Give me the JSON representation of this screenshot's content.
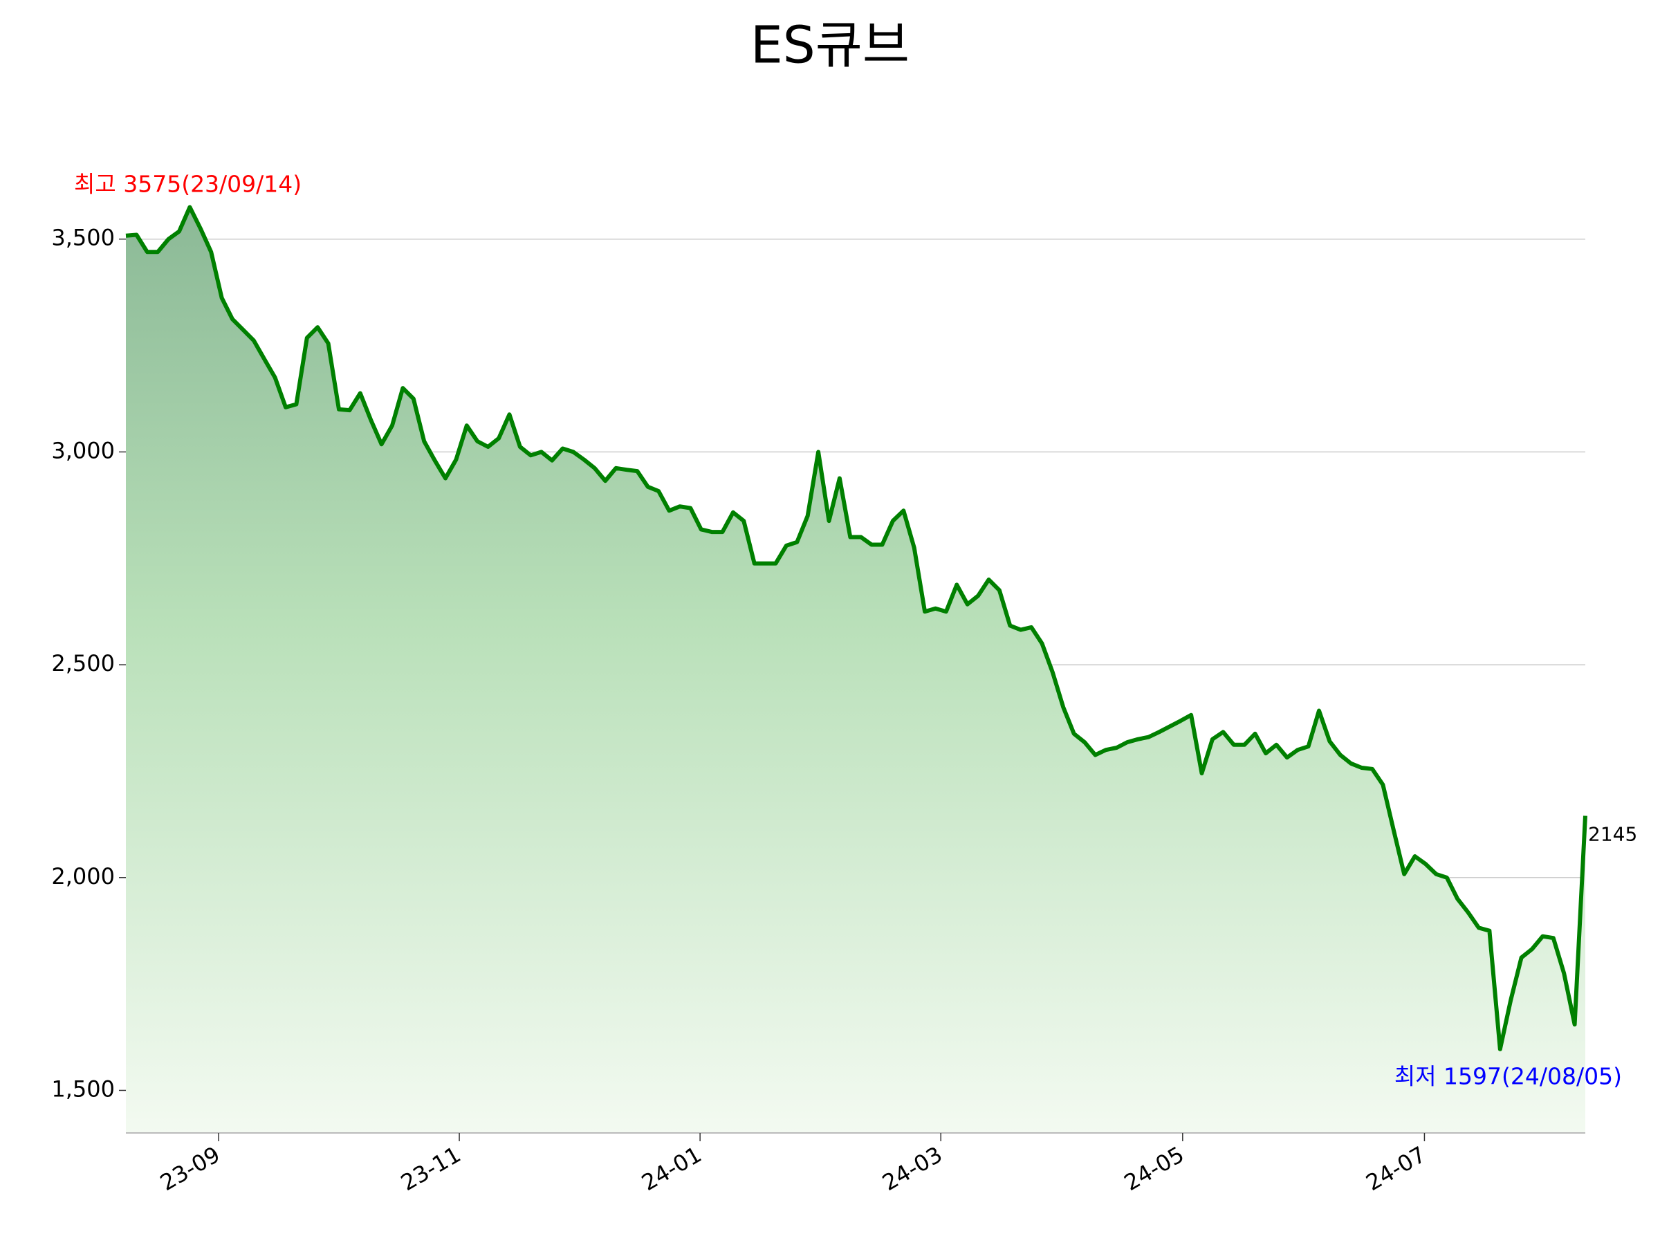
{
  "chart_data": {
    "type": "line",
    "title": "ES큐브",
    "color": "#008000",
    "grid": true,
    "categories": [
      null,
      null,
      null,
      null,
      null,
      null,
      null,
      null,
      null,
      null,
      null,
      null,
      null,
      null,
      null,
      null,
      null,
      null,
      null,
      null,
      null,
      null,
      null,
      null,
      null,
      null,
      null,
      null,
      null,
      null,
      null,
      null,
      null,
      null,
      null,
      null,
      null,
      null,
      null,
      null,
      null,
      null,
      null,
      null,
      null,
      null,
      null,
      null,
      null,
      null,
      null,
      null,
      null,
      null,
      null,
      null,
      null,
      null,
      null,
      null,
      null,
      null,
      null,
      null,
      null,
      null,
      null,
      null,
      null,
      null,
      null,
      null,
      null,
      null,
      null,
      null,
      null,
      null,
      null,
      null,
      null,
      null,
      null,
      null,
      null,
      null,
      null,
      null,
      null,
      null,
      null,
      null,
      null,
      null,
      null,
      null,
      null,
      null,
      null,
      null,
      null,
      null,
      null,
      null,
      null,
      null,
      null,
      null,
      null,
      null,
      null,
      null,
      null,
      null,
      null,
      null,
      null,
      null,
      null,
      null,
      null,
      null,
      null,
      null,
      null,
      null,
      null,
      null,
      null,
      null,
      null,
      null,
      null,
      null,
      null,
      null,
      null,
      null
    ],
    "values": [
      3508,
      3510,
      3470,
      3470,
      3500,
      3518,
      3575,
      3525,
      3470,
      3362,
      3312,
      3287,
      3262,
      3218,
      3175,
      3105,
      3112,
      3268,
      3293,
      3255,
      3100,
      3098,
      3138,
      3075,
      3018,
      3062,
      3150,
      3125,
      3025,
      2980,
      2938,
      2982,
      3062,
      3025,
      3012,
      3032,
      3088,
      3012,
      2992,
      3000,
      2980,
      3008,
      3000,
      2982,
      2962,
      2932,
      2962,
      2958,
      2955,
      2918,
      2908,
      2862,
      2872,
      2868,
      2818,
      2812,
      2812,
      2858,
      2838,
      2738,
      2738,
      2738,
      2780,
      2788,
      2850,
      3000,
      2838,
      2938,
      2800,
      2800,
      2782,
      2782,
      2838,
      2862,
      2775,
      2625,
      2632,
      2625,
      2688,
      2642,
      2662,
      2700,
      2675,
      2592,
      2582,
      2588,
      2550,
      2482,
      2400,
      2338,
      2318,
      2288,
      2300,
      2305,
      2318,
      2325,
      2330,
      2342,
      2355,
      2368,
      2382,
      2245,
      2325,
      2342,
      2312,
      2312,
      2338,
      2292,
      2312,
      2282,
      2300,
      2308,
      2392,
      2320,
      2288,
      2268,
      2258,
      2255,
      2218,
      2112,
      2008,
      2050,
      2032,
      2008,
      2000,
      1950,
      1918,
      1882,
      1875,
      1597,
      1712,
      1812,
      1832,
      1862,
      1858,
      1775,
      1655,
      2145
    ],
    "xlim": [
      0,
      137
    ],
    "xticks": [
      {
        "value": 8.7,
        "label": "23-09"
      },
      {
        "value": 31.3,
        "label": "23-11"
      },
      {
        "value": 53.9,
        "label": "24-01"
      },
      {
        "value": 76.5,
        "label": "24-03"
      },
      {
        "value": 99.2,
        "label": "24-05"
      },
      {
        "value": 121.9,
        "label": "24-07"
      }
    ],
    "ylim": [
      1400,
      3610
    ],
    "yticks": [
      {
        "value": 1500,
        "label": "1,500"
      },
      {
        "value": 2000,
        "label": "2,000"
      },
      {
        "value": 2500,
        "label": "2,500"
      },
      {
        "value": 3000,
        "label": "3,000"
      },
      {
        "value": 3500,
        "label": "3,500"
      }
    ],
    "annotations": [
      {
        "text": "최고 3575(23/09/14)",
        "color": "#ff0000"
      },
      {
        "text": "최저 1597(24/08/05)",
        "color": "#0000ff"
      }
    ]
  }
}
